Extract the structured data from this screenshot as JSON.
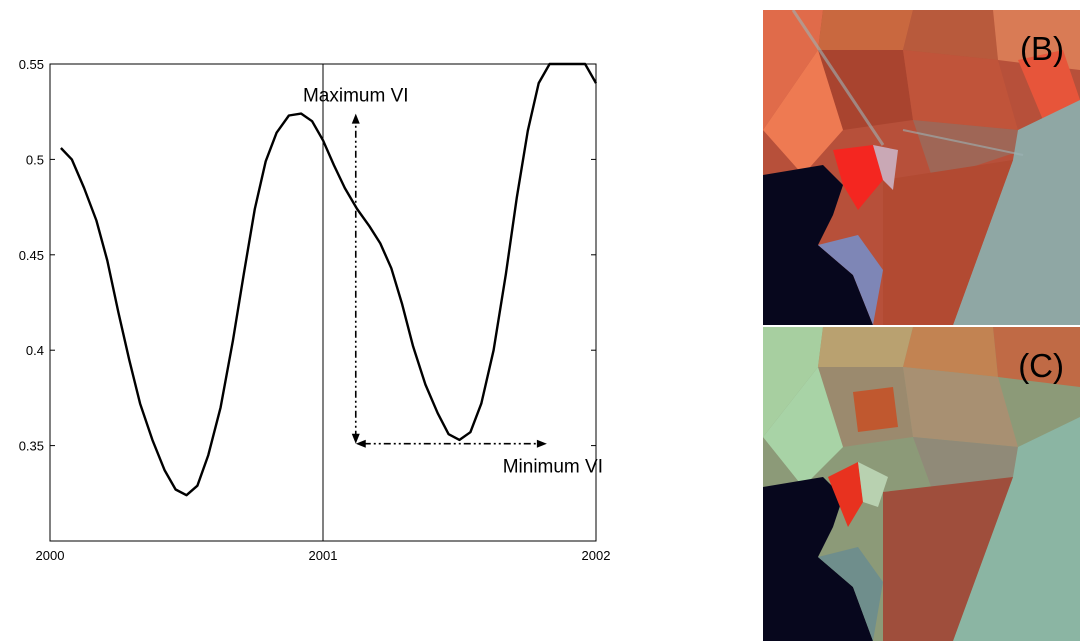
{
  "chart_data": {
    "type": "line",
    "title": "",
    "xlabel": "",
    "ylabel": "",
    "xlim": [
      2000,
      2002
    ],
    "ylim": [
      0.3,
      0.55
    ],
    "x_ticks": [
      2000,
      2001,
      2002
    ],
    "y_ticks": [
      0.35,
      0.4,
      0.45,
      0.5,
      0.55
    ],
    "x_tick_labels": [
      "2000",
      "2001",
      "2002"
    ],
    "y_tick_labels": [
      "0.35",
      "0.4",
      "0.45",
      "0.5",
      "0.55"
    ],
    "vertical_lines_at": [
      2001,
      2002
    ],
    "grid": false,
    "series": [
      {
        "x": [
          2000.04,
          2000.08,
          2000.125,
          2000.17,
          2000.21,
          2000.25,
          2000.29,
          2000.33,
          2000.375,
          2000.42,
          2000.46,
          2000.5,
          2000.54,
          2000.58,
          2000.625,
          2000.67,
          2000.71,
          2000.75,
          2000.79,
          2000.83,
          2000.875,
          2000.92,
          2000.96,
          2001.0,
          2001.04,
          2001.08,
          2001.125,
          2001.17,
          2001.21,
          2001.25,
          2001.29,
          2001.33,
          2001.375,
          2001.42,
          2001.46,
          2001.5,
          2001.54,
          2001.58,
          2001.625,
          2001.67,
          2001.71,
          2001.75,
          2001.79,
          2001.83,
          2001.875,
          2001.92,
          2001.96,
          2002.0
        ],
        "y": [
          0.506,
          0.5,
          0.485,
          0.468,
          0.447,
          0.42,
          0.395,
          0.372,
          0.353,
          0.337,
          0.327,
          0.324,
          0.329,
          0.345,
          0.37,
          0.405,
          0.44,
          0.474,
          0.499,
          0.514,
          0.523,
          0.524,
          0.52,
          0.51,
          0.497,
          0.485,
          0.474,
          0.465,
          0.456,
          0.443,
          0.424,
          0.402,
          0.382,
          0.367,
          0.356,
          0.353,
          0.357,
          0.372,
          0.4,
          0.44,
          0.48,
          0.515,
          0.54,
          0.56,
          0.57,
          0.575,
          0.578,
          0.54
        ]
      }
    ],
    "annotations": [
      {
        "text": "Maximum VI",
        "x": 2001.12,
        "y": 0.524
      },
      {
        "text": "Minimum VI",
        "x": 2001.82,
        "y": 0.351
      }
    ],
    "arrow_vertical": {
      "x": 2001.12,
      "y_from": 0.351,
      "y_to": 0.524
    },
    "arrow_horizontal": {
      "y": 0.351,
      "x_from": 2001.12,
      "x_to": 2001.82
    }
  },
  "panels": [
    {
      "label": "(B)"
    },
    {
      "label": "(C)"
    }
  ]
}
